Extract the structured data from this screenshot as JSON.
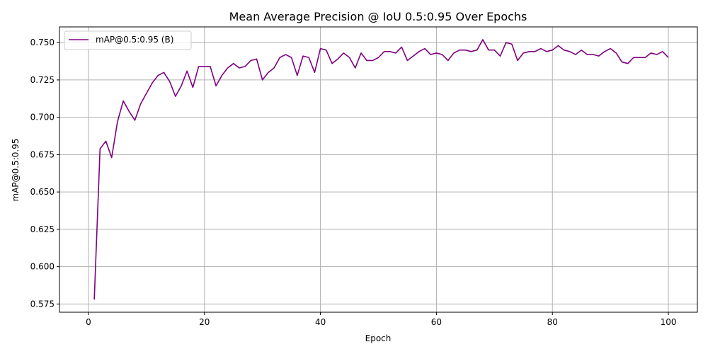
{
  "chart_data": {
    "type": "line",
    "title": "Mean Average Precision @ IoU 0.5:0.95 Over Epochs",
    "xlabel": "Epoch",
    "ylabel": "mAP@0.5:0.95",
    "xlim": [
      -5,
      105
    ],
    "ylim": [
      0.5695,
      0.7605
    ],
    "xticks": [
      0,
      20,
      40,
      60,
      80,
      100
    ],
    "yticks": [
      0.575,
      0.6,
      0.625,
      0.65,
      0.675,
      0.7,
      0.725,
      0.75
    ],
    "ytick_labels": [
      "0.575",
      "0.600",
      "0.625",
      "0.650",
      "0.675",
      "0.700",
      "0.725",
      "0.750"
    ],
    "grid": true,
    "legend_position": "upper-left",
    "series": [
      {
        "name": "mAP@0.5:0.95 (B)",
        "color": "#800080",
        "x": [
          1,
          2,
          3,
          4,
          5,
          6,
          7,
          8,
          9,
          10,
          11,
          12,
          13,
          14,
          15,
          16,
          17,
          18,
          19,
          20,
          21,
          22,
          23,
          24,
          25,
          26,
          27,
          28,
          29,
          30,
          31,
          32,
          33,
          34,
          35,
          36,
          37,
          38,
          39,
          40,
          41,
          42,
          43,
          44,
          45,
          46,
          47,
          48,
          49,
          50,
          51,
          52,
          53,
          54,
          55,
          56,
          57,
          58,
          59,
          60,
          61,
          62,
          63,
          64,
          65,
          66,
          67,
          68,
          69,
          70,
          71,
          72,
          73,
          74,
          75,
          76,
          77,
          78,
          79,
          80,
          81,
          82,
          83,
          84,
          85,
          86,
          87,
          88,
          89,
          90,
          91,
          92,
          93,
          94,
          95,
          96,
          97,
          98,
          99,
          100
        ],
        "y": [
          0.578,
          0.679,
          0.684,
          0.673,
          0.697,
          0.711,
          0.704,
          0.698,
          0.709,
          0.716,
          0.723,
          0.728,
          0.73,
          0.724,
          0.714,
          0.721,
          0.731,
          0.72,
          0.734,
          0.734,
          0.734,
          0.721,
          0.728,
          0.733,
          0.736,
          0.733,
          0.734,
          0.738,
          0.739,
          0.725,
          0.73,
          0.733,
          0.74,
          0.742,
          0.74,
          0.728,
          0.741,
          0.74,
          0.73,
          0.746,
          0.745,
          0.736,
          0.739,
          0.743,
          0.74,
          0.733,
          0.743,
          0.738,
          0.738,
          0.74,
          0.744,
          0.744,
          0.743,
          0.747,
          0.738,
          0.741,
          0.744,
          0.746,
          0.742,
          0.743,
          0.742,
          0.738,
          0.743,
          0.745,
          0.745,
          0.744,
          0.745,
          0.752,
          0.745,
          0.745,
          0.741,
          0.75,
          0.749,
          0.738,
          0.743,
          0.744,
          0.744,
          0.746,
          0.744,
          0.745,
          0.748,
          0.745,
          0.744,
          0.742,
          0.745,
          0.742,
          0.742,
          0.741,
          0.744,
          0.746,
          0.743,
          0.737,
          0.736,
          0.74,
          0.74,
          0.74,
          0.743,
          0.742,
          0.744,
          0.74
        ]
      }
    ]
  }
}
